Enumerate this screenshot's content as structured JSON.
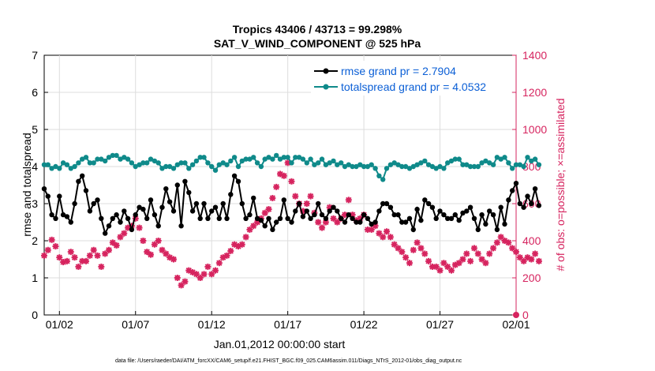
{
  "chart_data": {
    "type": "line",
    "title_line1": "Tropics 43406 / 43713 = 99.298%",
    "title_line2": "SAT_V_WIND_COMPONENT @ 525 hPa",
    "xlabel": "Jan.01,2012 00:00:00 start",
    "ylabel_left": "rmse and totalspread",
    "ylabel_right": "# of obs: o=possible; ×=assimilated",
    "xlim": [
      0,
      31
    ],
    "ylim_left": [
      0,
      7
    ],
    "ylim_right": [
      0,
      1400
    ],
    "x_ticks": [
      1,
      6,
      11,
      16,
      21,
      26,
      31
    ],
    "x_tick_labels": [
      "01/02",
      "01/07",
      "01/12",
      "01/17",
      "01/22",
      "01/27",
      "02/01"
    ],
    "y_ticks_left": [
      0,
      1,
      2,
      3,
      4,
      5,
      6,
      7
    ],
    "y_ticks_right": [
      0,
      200,
      400,
      600,
      800,
      1000,
      1200,
      1400
    ],
    "colors": {
      "rmse": "#000000",
      "spread": "#0f8a8a",
      "obs": "#d6245f",
      "legend_text": "#0b5fd6"
    },
    "legend": [
      {
        "label": "rmse grand pr = 2.7904",
        "series": "rmse"
      },
      {
        "label": "totalspread grand pr = 4.0532",
        "series": "spread"
      }
    ],
    "footer": "data file: /Users/raeder/DAI/ATM_forcXX/CAM6_setup/f.e21.FHIST_BGC.f09_025.CAM6assim.011/Diags_NTrS_2012-01/obs_diag_output.nc",
    "step_days": 0.25,
    "series": [
      {
        "name": "rmse",
        "axis": "left",
        "values": [
          3.4,
          3.2,
          2.7,
          2.6,
          3.2,
          2.7,
          2.65,
          2.5,
          3.0,
          3.6,
          3.75,
          3.35,
          2.8,
          3.0,
          3.1,
          2.6,
          2.2,
          2.4,
          2.6,
          2.7,
          2.5,
          2.8,
          2.6,
          2.3,
          2.7,
          2.9,
          2.85,
          2.6,
          3.1,
          2.7,
          2.4,
          2.9,
          3.4,
          3.05,
          2.8,
          3.5,
          2.4,
          3.6,
          3.3,
          2.8,
          3.0,
          2.6,
          3.0,
          2.6,
          2.8,
          2.9,
          2.6,
          3.0,
          2.6,
          3.25,
          3.75,
          3.6,
          3.0,
          2.6,
          2.7,
          3.15,
          2.6,
          2.55,
          2.4,
          2.6,
          2.3,
          2.5,
          2.6,
          3.1,
          2.6,
          2.5,
          2.8,
          3.0,
          2.65,
          2.8,
          2.6,
          2.7,
          3.0,
          2.7,
          2.6,
          2.8,
          2.9,
          2.8,
          2.6,
          2.5,
          2.7,
          2.6,
          2.5,
          2.5,
          2.7,
          2.6,
          2.45,
          2.5,
          2.8,
          3.0,
          3.0,
          2.9,
          2.7,
          2.7,
          2.5,
          2.5,
          2.6,
          2.3,
          2.85,
          2.55,
          3.1,
          3.0,
          2.9,
          2.6,
          2.8,
          2.7,
          2.6,
          2.6,
          2.7,
          2.55,
          2.75,
          2.8,
          2.9,
          2.6,
          2.3,
          2.7,
          2.45,
          2.8,
          2.7,
          2.3,
          2.9,
          2.45,
          3.1,
          3.35,
          3.55,
          3.0,
          2.9,
          3.2,
          3.0,
          3.4,
          2.95
        ]
      },
      {
        "name": "totalspread",
        "axis": "left",
        "values": [
          4.05,
          4.05,
          3.95,
          4.0,
          3.95,
          4.1,
          4.05,
          3.95,
          4.0,
          4.1,
          4.2,
          4.25,
          4.1,
          4.1,
          4.2,
          4.2,
          4.15,
          4.25,
          4.3,
          4.3,
          4.2,
          4.25,
          4.2,
          4.1,
          4.0,
          4.05,
          4.1,
          4.1,
          4.2,
          4.15,
          4.1,
          3.95,
          4.0,
          4.0,
          3.95,
          4.05,
          4.1,
          4.1,
          3.95,
          4.05,
          4.15,
          4.25,
          4.25,
          4.1,
          4.0,
          3.9,
          4.05,
          4.1,
          4.05,
          4.15,
          4.25,
          4.0,
          4.15,
          4.2,
          4.2,
          4.25,
          4.1,
          4.0,
          4.2,
          4.25,
          4.2,
          4.3,
          4.2,
          4.25,
          4.25,
          4.1,
          4.25,
          4.25,
          4.2,
          4.1,
          4.2,
          4.05,
          4.1,
          4.2,
          4.05,
          4.1,
          4.15,
          4.05,
          4.1,
          4.0,
          4.05,
          4.0,
          4.0,
          4.05,
          4.0,
          4.0,
          4.05,
          3.95,
          3.75,
          3.65,
          3.95,
          4.05,
          4.1,
          4.05,
          4.0,
          4.0,
          3.95,
          4.0,
          4.05,
          4.1,
          4.15,
          4.05,
          4.0,
          3.95,
          4.0,
          3.95,
          4.1,
          4.15,
          4.2,
          4.2,
          4.05,
          4.05,
          4.0,
          4.0,
          4.0,
          4.1,
          4.15,
          4.1,
          4.05,
          4.25,
          4.2,
          4.25,
          4.1,
          3.95,
          4.05,
          4.05,
          4.0,
          4.25,
          4.15,
          4.2,
          4.05
        ]
      },
      {
        "name": "obs_assimilated",
        "axis": "right",
        "values": [
          320,
          350,
          405,
          370,
          310,
          285,
          290,
          340,
          310,
          260,
          290,
          290,
          320,
          350,
          320,
          260,
          330,
          350,
          390,
          375,
          420,
          440,
          470,
          480,
          520,
          470,
          400,
          340,
          325,
          380,
          400,
          350,
          330,
          310,
          300,
          200,
          160,
          180,
          240,
          230,
          220,
          200,
          220,
          260,
          220,
          240,
          280,
          310,
          320,
          345,
          380,
          370,
          380,
          420,
          460,
          480,
          500,
          520,
          550,
          570,
          630,
          690,
          760,
          750,
          820,
          720,
          640,
          600,
          560,
          600,
          640,
          550,
          500,
          470,
          500,
          580,
          520,
          500,
          520,
          540,
          620,
          540,
          510,
          520,
          540,
          460,
          460,
          480,
          440,
          420,
          450,
          420,
          380,
          360,
          340,
          310,
          280,
          350,
          390,
          360,
          330,
          290,
          260,
          260,
          240,
          280,
          260,
          240,
          270,
          280,
          300,
          330,
          290,
          360,
          330,
          300,
          280,
          330,
          360,
          390,
          420,
          400,
          390,
          360,
          340,
          310,
          290,
          310,
          300,
          330,
          290
        ]
      }
    ]
  }
}
